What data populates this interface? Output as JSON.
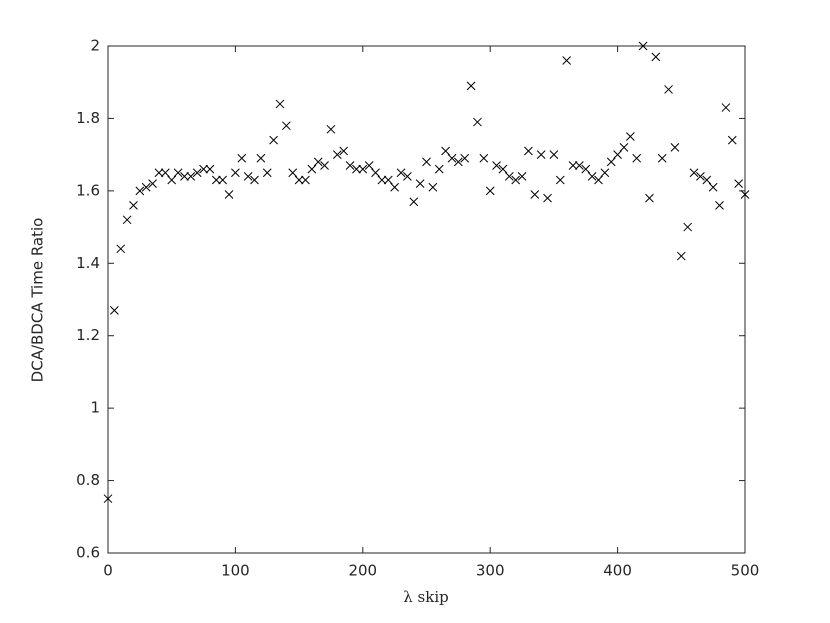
{
  "chart_data": {
    "type": "scatter",
    "xlabel": "λ skip",
    "ylabel": "DCA/BDCA Time Ratio",
    "color": "#000000",
    "xlim": [
      0,
      500
    ],
    "xticks": [
      0,
      100,
      200,
      300,
      400,
      500
    ],
    "ylim": [
      0.6,
      2
    ],
    "yticks": [
      0.6,
      0.8,
      1,
      1.2,
      1.4,
      1.6,
      1.8,
      2
    ],
    "x": [
      0,
      5,
      10,
      15,
      20,
      25,
      30,
      35,
      40,
      45,
      50,
      55,
      60,
      65,
      70,
      75,
      80,
      85,
      90,
      95,
      100,
      105,
      110,
      115,
      120,
      125,
      130,
      135,
      140,
      145,
      150,
      155,
      160,
      165,
      170,
      175,
      180,
      185,
      190,
      195,
      200,
      205,
      210,
      215,
      220,
      225,
      230,
      235,
      240,
      245,
      250,
      255,
      260,
      265,
      270,
      275,
      280,
      285,
      290,
      295,
      300,
      305,
      310,
      315,
      320,
      325,
      330,
      335,
      340,
      345,
      350,
      355,
      360,
      365,
      370,
      375,
      380,
      385,
      390,
      395,
      400,
      405,
      410,
      415,
      420,
      425,
      430,
      435,
      440,
      445,
      450,
      455,
      460,
      465,
      470,
      475,
      480,
      485,
      490,
      495,
      500
    ],
    "y": [
      0.75,
      1.27,
      1.44,
      1.52,
      1.56,
      1.6,
      1.61,
      1.62,
      1.65,
      1.65,
      1.63,
      1.65,
      1.64,
      1.64,
      1.65,
      1.66,
      1.66,
      1.63,
      1.63,
      1.59,
      1.65,
      1.69,
      1.64,
      1.63,
      1.69,
      1.65,
      1.74,
      1.84,
      1.78,
      1.65,
      1.63,
      1.63,
      1.66,
      1.68,
      1.67,
      1.77,
      1.7,
      1.71,
      1.67,
      1.66,
      1.66,
      1.67,
      1.65,
      1.63,
      1.63,
      1.61,
      1.65,
      1.64,
      1.57,
      1.62,
      1.68,
      1.61,
      1.66,
      1.71,
      1.69,
      1.68,
      1.69,
      1.89,
      1.79,
      1.69,
      1.6,
      1.67,
      1.66,
      1.64,
      1.63,
      1.64,
      1.71,
      1.59,
      1.7,
      1.58,
      1.7,
      1.63,
      1.96,
      1.67,
      1.67,
      1.66,
      1.64,
      1.63,
      1.65,
      1.68,
      1.7,
      1.72,
      1.75,
      1.69,
      2,
      1.58,
      1.97,
      1.69,
      1.88,
      1.72,
      1.42,
      1.5,
      1.65,
      1.64,
      1.63,
      1.61,
      1.56,
      1.83,
      1.74,
      1.62,
      1.59
    ]
  }
}
